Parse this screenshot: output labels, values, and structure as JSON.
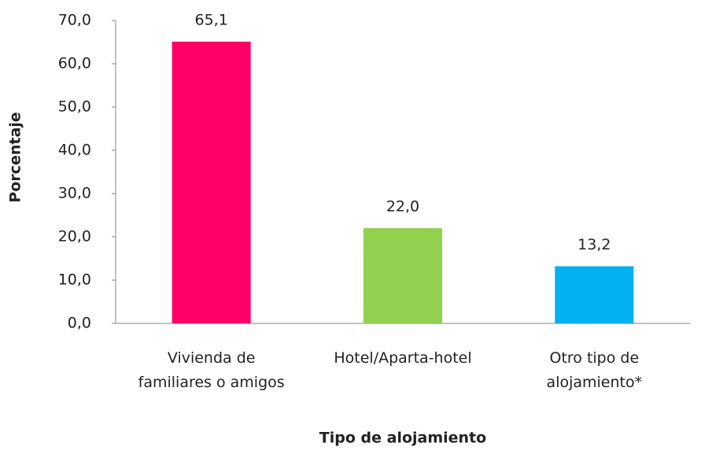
{
  "chart_data": {
    "type": "bar",
    "categories": [
      "Vivienda de familiares o amigos",
      "Hotel/Aparta-hotel",
      "Otro tipo de alojamiento*"
    ],
    "values": [
      65.1,
      22.0,
      13.2
    ],
    "value_labels": [
      "65,1",
      "22,0",
      "13,2"
    ],
    "colors": [
      "#ff0066",
      "#92d050",
      "#00b0f0"
    ],
    "ylim": [
      0,
      70
    ],
    "yticks": [
      {
        "value": 0,
        "label": "0,0"
      },
      {
        "value": 10,
        "label": "10,0"
      },
      {
        "value": 20,
        "label": "20,0"
      },
      {
        "value": 30,
        "label": "30,0"
      },
      {
        "value": 40,
        "label": "40,0"
      },
      {
        "value": 50,
        "label": "50,0"
      },
      {
        "value": 60,
        "label": "60,0"
      },
      {
        "value": 70,
        "label": "70,0"
      }
    ],
    "y_label": "Porcentaje",
    "x_label": "Tipo de alojamiento",
    "grid": false
  }
}
